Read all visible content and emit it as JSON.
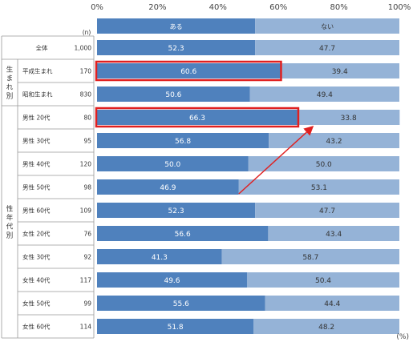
{
  "chart_data": {
    "type": "bar",
    "stacked": "100%",
    "orientation": "horizontal",
    "x_ticks": [
      "0%",
      "20%",
      "40%",
      "60%",
      "80%",
      "100%"
    ],
    "xlim": [
      0,
      100
    ],
    "n_header": "(n)",
    "unit_label": "(%)",
    "series": [
      {
        "name": "ある",
        "color": "#4f81bd"
      },
      {
        "name": "ない",
        "color": "#95b3d7"
      }
    ],
    "groups": [
      {
        "label": "生まれ別",
        "rows": [
          1,
          2
        ]
      },
      {
        "label": "性年代別",
        "rows": [
          3,
          12
        ]
      }
    ],
    "rows": [
      {
        "category": "全体",
        "n": "1,000",
        "values": [
          52.3,
          47.7
        ],
        "highlight": false
      },
      {
        "category": "平成生まれ",
        "n": "170",
        "values": [
          60.6,
          39.4
        ],
        "highlight": true
      },
      {
        "category": "昭和生まれ",
        "n": "830",
        "values": [
          50.6,
          49.4
        ],
        "highlight": false
      },
      {
        "category": "男性 20代",
        "n": "80",
        "values": [
          66.3,
          33.8
        ],
        "highlight": true
      },
      {
        "category": "男性 30代",
        "n": "95",
        "values": [
          56.8,
          43.2
        ],
        "highlight": false
      },
      {
        "category": "男性 40代",
        "n": "120",
        "values": [
          50.0,
          50.0
        ],
        "highlight": false
      },
      {
        "category": "男性 50代",
        "n": "98",
        "values": [
          46.9,
          53.1
        ],
        "highlight": false
      },
      {
        "category": "男性 60代",
        "n": "109",
        "values": [
          52.3,
          47.7
        ],
        "highlight": false
      },
      {
        "category": "女性 20代",
        "n": "76",
        "values": [
          56.6,
          43.4
        ],
        "highlight": false
      },
      {
        "category": "女性 30代",
        "n": "92",
        "values": [
          41.3,
          58.7
        ],
        "highlight": false
      },
      {
        "category": "女性 40代",
        "n": "117",
        "values": [
          49.6,
          50.4
        ],
        "highlight": false
      },
      {
        "category": "女性 50代",
        "n": "99",
        "values": [
          55.6,
          44.4
        ],
        "highlight": false
      },
      {
        "category": "女性 60代",
        "n": "114",
        "values": [
          51.8,
          48.2
        ],
        "highlight": false
      }
    ],
    "annotation": {
      "type": "arrow",
      "color": "#e02020",
      "from_row": "男性 50代",
      "to_row": "男性 20代"
    },
    "highlight_color": "#e02020",
    "grid": false
  }
}
